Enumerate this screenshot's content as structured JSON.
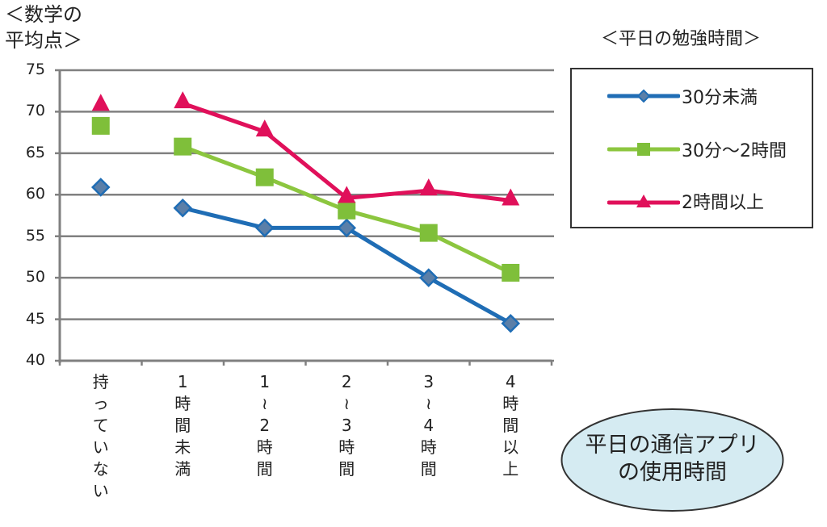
{
  "chart_data": {
    "type": "line",
    "title": "",
    "ylabel": "＜数学の\n平均点＞",
    "xlabel": "平日の通信アプリの使用時間",
    "ylim": [
      40,
      75
    ],
    "yticks": [
      75,
      70,
      65,
      60,
      55,
      50,
      45,
      40
    ],
    "grid": true,
    "legend_title": "＜平日の勉強時間＞",
    "legend_position": "right",
    "categories": [
      "持っていない",
      "1時間未満",
      "1～2時間",
      "2～3時間",
      "3～4時間",
      "4時間以上"
    ],
    "category_labels_vertical": [
      [
        "持",
        "っ",
        "て",
        "い",
        "な",
        "い"
      ],
      [
        "1",
        "時",
        "間",
        "未",
        "満"
      ],
      [
        "1",
        "～",
        "2",
        "時",
        "間"
      ],
      [
        "2",
        "～",
        "3",
        "時",
        "間"
      ],
      [
        "3",
        "～",
        "4",
        "時",
        "間"
      ],
      [
        "4",
        "時",
        "間",
        "以",
        "上"
      ]
    ],
    "series": [
      {
        "name": "30分未満",
        "color": "#1f6db5",
        "marker": "diamond",
        "values": [
          60.9,
          58.4,
          56.0,
          56.0,
          50.0,
          44.5
        ]
      },
      {
        "name": "30分～2時間",
        "color": "#8cc63f",
        "marker": "square",
        "values": [
          68.3,
          65.8,
          62.1,
          58.1,
          55.4,
          50.6
        ]
      },
      {
        "name": "2時間以上",
        "color": "#e0105a",
        "marker": "triangle",
        "values": [
          70.7,
          71.0,
          67.6,
          59.6,
          60.5,
          59.3
        ]
      }
    ],
    "note": "First category (持っていない) is plotted as unconnected markers"
  },
  "annotation": {
    "line1": "平日の通信アプリ",
    "line2": "の使用時間"
  }
}
